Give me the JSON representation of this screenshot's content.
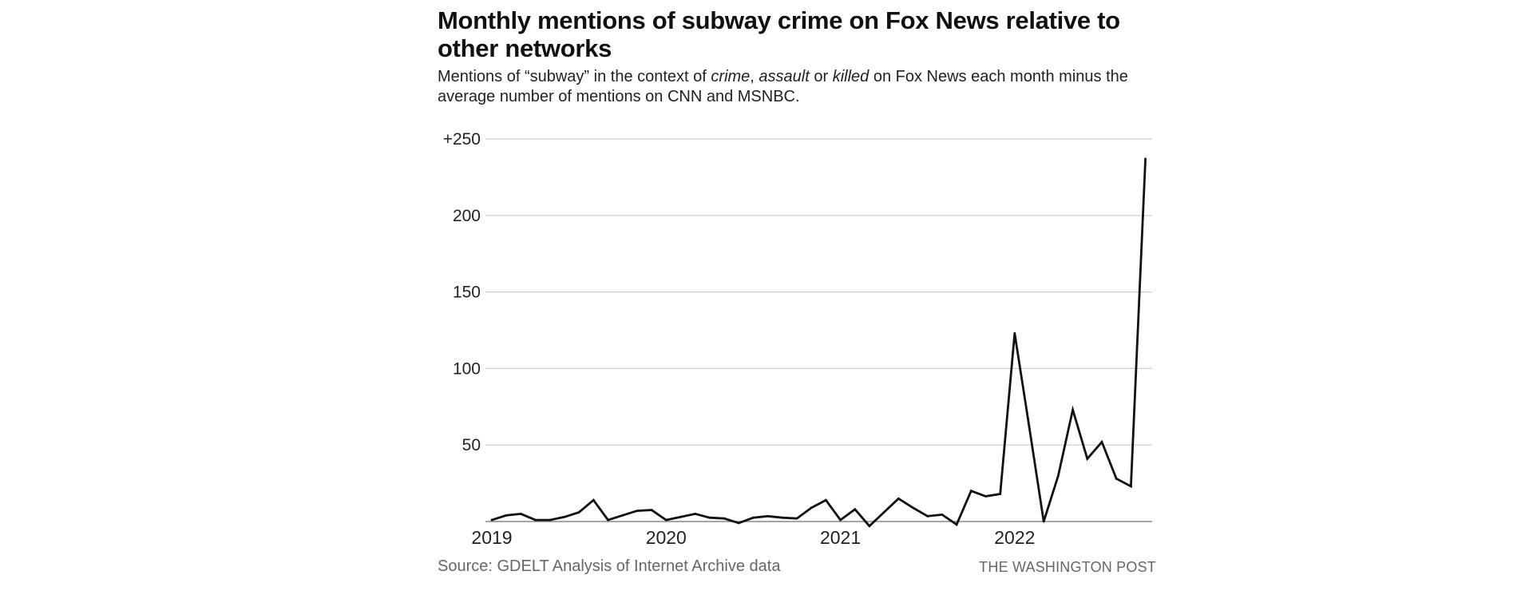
{
  "title": "Monthly mentions of subway crime on Fox News relative to other networks",
  "subtitle": {
    "part1": "Mentions of “subway” in the context of ",
    "crime": "crime",
    "comma": ", ",
    "assault": "assault",
    "or": " or ",
    "killed": "killed",
    "part2": " on Fox News each month minus the average number of mentions on CNN and MSNBC."
  },
  "source": "Source: GDELT Analysis of Internet Archive data",
  "credit": "THE WASHINGTON POST",
  "chart_data": {
    "type": "line",
    "title": "Monthly mentions of subway crime on Fox News relative to other networks",
    "xlabel": "",
    "ylabel": "",
    "x_start": "2019-01",
    "x_interval": "month",
    "x_ticks": [
      "2019",
      "2020",
      "2021",
      "2022"
    ],
    "y_ticks": [
      {
        "value": 50,
        "label": "50"
      },
      {
        "value": 100,
        "label": "100"
      },
      {
        "value": 150,
        "label": "150"
      },
      {
        "value": 200,
        "label": "200"
      },
      {
        "value": 250,
        "label": "+250"
      }
    ],
    "ylim": [
      0,
      250
    ],
    "grid": true,
    "line_color": "#111111",
    "grid_color": "#cccccc",
    "values": [
      1,
      4,
      5,
      1,
      1,
      3,
      6,
      14,
      1,
      4,
      7,
      7.5,
      1,
      3,
      5,
      2.5,
      2,
      -1,
      2.5,
      3.5,
      2.5,
      2,
      9,
      14,
      1,
      8,
      -3,
      6,
      15,
      9,
      3.5,
      4.5,
      -2,
      20,
      16.5,
      18,
      123,
      62,
      0,
      30,
      73,
      41,
      52,
      28,
      23,
      237
    ]
  }
}
